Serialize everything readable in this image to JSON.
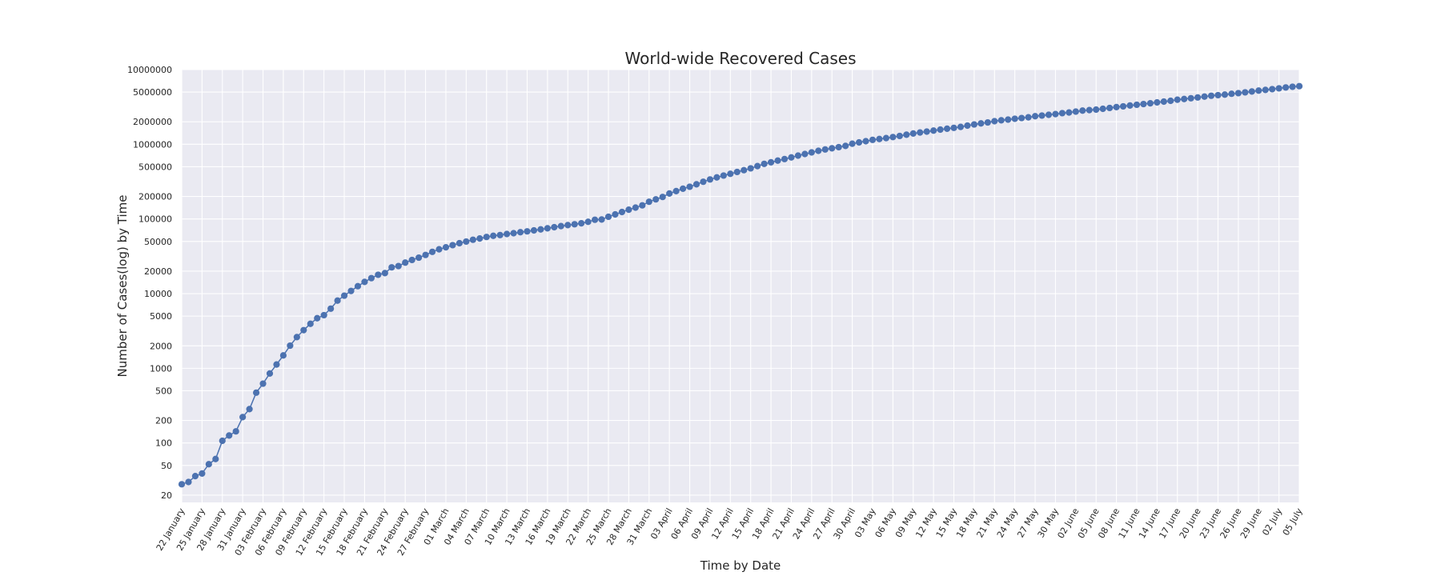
{
  "chart_data": {
    "type": "line",
    "title": "World-wide Recovered Cases",
    "xlabel": "Time by Date",
    "ylabel": "Number of Cases(log) by Time",
    "yscale": "log",
    "ylim": [
      16,
      10000000
    ],
    "grid": true,
    "legend": "none",
    "x_start_date": "2020-01-22",
    "x_tick_labels": [
      "22 January",
      "25 January",
      "28 January",
      "31 January",
      "03 February",
      "06 February",
      "09 February",
      "12 February",
      "15 February",
      "18 February",
      "21 February",
      "24 February",
      "27 February",
      "01 March",
      "04 March",
      "07 March",
      "10 March",
      "13 March",
      "16 March",
      "19 March",
      "22 March",
      "25 March",
      "28 March",
      "31 March",
      "03 April",
      "06 April",
      "09 April",
      "12 April",
      "15 April",
      "18 April",
      "21 April",
      "24 April",
      "27 April",
      "30 April",
      "03 May",
      "06 May",
      "09 May",
      "12 May",
      "15 May",
      "18 May",
      "21 May",
      "24 May",
      "27 May",
      "30 May",
      "02 June",
      "05 June",
      "08 June",
      "11 June",
      "14 June",
      "17 June",
      "20 June",
      "23 June",
      "26 June",
      "29 June",
      "02 July",
      "05 July"
    ],
    "y_ticks": [
      20,
      50,
      100,
      200,
      500,
      1000,
      2000,
      5000,
      10000,
      20000,
      50000,
      100000,
      200000,
      500000,
      1000000,
      2000000,
      5000000,
      10000000
    ],
    "y_tick_labels": [
      "20",
      "50",
      "100",
      "200",
      "500",
      "1000",
      "2000",
      "5000",
      "10000",
      "20000",
      "50000",
      "100000",
      "200000",
      "500000",
      "1000000",
      "2000000",
      "5000000",
      "10000000"
    ],
    "series": [
      {
        "color": "#4c72b0",
        "values": [
          28,
          30,
          36,
          39,
          52,
          61,
          107,
          126,
          143,
          222,
          284,
          472,
          623,
          852,
          1124,
          1487,
          2011,
          2616,
          3244,
          3946,
          4683,
          5150,
          6295,
          8058,
          9395,
          10865,
          12583,
          14352,
          16121,
          17887,
          18814,
          22480,
          23390,
          26010,
          28240,
          30330,
          32970,
          36270,
          39250,
          41740,
          44570,
          47360,
          49810,
          52640,
          54700,
          57400,
          59500,
          60900,
          62900,
          64400,
          66400,
          68200,
          70300,
          72400,
          75000,
          77600,
          80200,
          82700,
          84900,
          87500,
          91600,
          97500,
          98300,
          107000,
          115000,
          124000,
          133000,
          142000,
          152000,
          170000,
          183000,
          197000,
          219000,
          236000,
          254000,
          270000,
          291000,
          315000,
          338000,
          360000,
          381000,
          402000,
          426000,
          450000,
          476000,
          510000,
          547000,
          574000,
          604000,
          634000,
          667000,
          705000,
          741000,
          779000,
          817000,
          852000,
          883000,
          915000,
          951000,
          1017000,
          1060000,
          1100000,
          1146000,
          1177000,
          1209000,
          1249000,
          1292000,
          1344000,
          1393000,
          1437000,
          1477000,
          1524000,
          1572000,
          1616000,
          1659000,
          1708000,
          1778000,
          1842000,
          1903000,
          1960000,
          2037000,
          2096000,
          2142000,
          2196000,
          2245000,
          2296000,
          2376000,
          2425000,
          2483000,
          2537000,
          2610000,
          2665000,
          2740000,
          2823000,
          2870000,
          2911000,
          2985000,
          3064000,
          3147000,
          3220000,
          3305000,
          3382000,
          3457000,
          3538000,
          3638000,
          3731000,
          3824000,
          3956000,
          4040000,
          4135000,
          4237000,
          4350000,
          4466000,
          4546000,
          4624000,
          4746000,
          4837000,
          4956000,
          5092000,
          5229000,
          5346000,
          5471000,
          5610000,
          5769000,
          5895000,
          6000000
        ]
      }
    ]
  }
}
